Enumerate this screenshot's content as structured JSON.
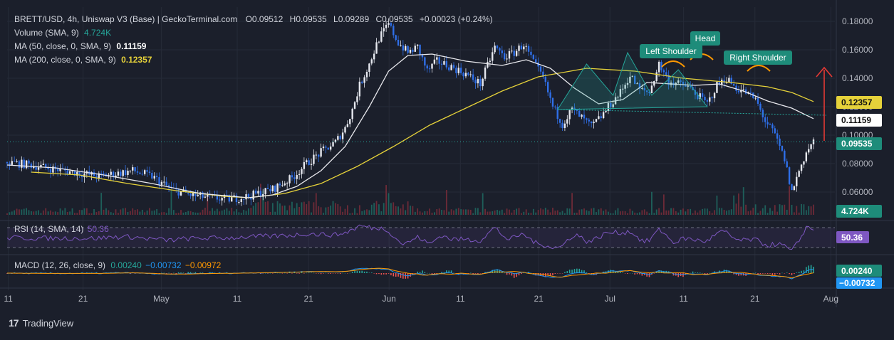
{
  "header": {
    "symbol_line": "BRETT/USD, 4h, Uniswap V3 (Base) | GeckoTerminal.com",
    "ohlc": [
      {
        "k": "O",
        "v": "0.09512"
      },
      {
        "k": "H",
        "v": "0.09535"
      },
      {
        "k": "L",
        "v": "0.09289"
      },
      {
        "k": "C",
        "v": "0.09535"
      }
    ],
    "change": "+0.00023 (+0.24%)",
    "volume_label": "Volume (SMA, 9)",
    "volume_value": "4.724K",
    "ma50_label": "MA (50, close, 0, SMA, 9)",
    "ma50_value": "0.11159",
    "ma200_label": "MA (200, close, 0, SMA, 9)",
    "ma200_value": "0.12357"
  },
  "rsi": {
    "label": "RSI (14, SMA, 14)",
    "value": "50.36",
    "badge": "50.36"
  },
  "macd": {
    "label": "MACD (12, 26, close, 9)",
    "v1": "0.00240",
    "v2": "−0.00732",
    "v3": "−0.00972",
    "badge1": "0.00240",
    "badge2": "−0.00732"
  },
  "annotations": {
    "left_shoulder": "Left Shoulder",
    "head": "Head",
    "right_shoulder": "Right Shoulder"
  },
  "price_badges": {
    "ma200": "0.12357",
    "ma50": "0.11159",
    "last": "0.09535",
    "volume": "4.724K"
  },
  "footer": {
    "logo": "17",
    "brand": "TradingView"
  },
  "colors": {
    "background": "#1b1f2b",
    "candle_blue": "#2f6fe8",
    "candle_white": "#e6e8ef",
    "ma50": "#e9e9ee",
    "ma200": "#e6d23a",
    "rsi": "#7e57c2",
    "macd": "#2196f3",
    "signal": "#ff9800",
    "pattern": "#26a69a",
    "arrow": "#e53935",
    "label_bg": "#1e8c7a"
  },
  "chart_data": {
    "type": "candlestick",
    "timeframe": "4h",
    "y_axis": {
      "min": 0.05,
      "max": 0.19,
      "ticks": [
        "0.18000",
        "0.16000",
        "0.14000",
        "0.12000",
        "0.10000",
        "0.08000",
        "0.06000"
      ]
    },
    "x_ticks": [
      "11",
      "21",
      "May",
      "11",
      "21",
      "Jun",
      "11",
      "21",
      "Jul",
      "11",
      "21",
      "Aug"
    ],
    "close_path": [
      [
        0,
        0.081
      ],
      [
        10,
        0.079
      ],
      [
        20,
        0.076
      ],
      [
        28,
        0.074
      ],
      [
        38,
        0.071
      ],
      [
        45,
        0.073
      ],
      [
        52,
        0.075
      ],
      [
        60,
        0.071
      ],
      [
        68,
        0.062
      ],
      [
        76,
        0.058
      ],
      [
        84,
        0.056
      ],
      [
        92,
        0.055
      ],
      [
        100,
        0.057
      ],
      [
        106,
        0.06
      ],
      [
        110,
        0.062
      ],
      [
        118,
        0.07
      ],
      [
        124,
        0.08
      ],
      [
        130,
        0.088
      ],
      [
        136,
        0.095
      ],
      [
        140,
        0.105
      ],
      [
        143,
        0.118
      ],
      [
        146,
        0.135
      ],
      [
        150,
        0.15
      ],
      [
        154,
        0.168
      ],
      [
        158,
        0.178
      ],
      [
        162,
        0.165
      ],
      [
        166,
        0.158
      ],
      [
        170,
        0.162
      ],
      [
        174,
        0.145
      ],
      [
        178,
        0.152
      ],
      [
        184,
        0.148
      ],
      [
        190,
        0.143
      ],
      [
        196,
        0.136
      ],
      [
        202,
        0.162
      ],
      [
        206,
        0.155
      ],
      [
        210,
        0.158
      ],
      [
        214,
        0.164
      ],
      [
        218,
        0.151
      ],
      [
        222,
        0.14
      ],
      [
        226,
        0.12
      ],
      [
        230,
        0.108
      ],
      [
        234,
        0.118
      ],
      [
        238,
        0.112
      ],
      [
        242,
        0.106
      ],
      [
        246,
        0.113
      ],
      [
        250,
        0.122
      ],
      [
        254,
        0.13
      ],
      [
        258,
        0.142
      ],
      [
        262,
        0.132
      ],
      [
        266,
        0.13
      ],
      [
        270,
        0.15
      ],
      [
        274,
        0.138
      ],
      [
        278,
        0.136
      ],
      [
        282,
        0.134
      ],
      [
        286,
        0.128
      ],
      [
        290,
        0.122
      ],
      [
        294,
        0.135
      ],
      [
        298,
        0.14
      ],
      [
        302,
        0.133
      ],
      [
        306,
        0.13
      ],
      [
        310,
        0.125
      ],
      [
        314,
        0.11
      ],
      [
        318,
        0.1
      ],
      [
        322,
        0.083
      ],
      [
        325,
        0.06
      ],
      [
        328,
        0.075
      ],
      [
        331,
        0.088
      ],
      [
        334,
        0.0953
      ]
    ],
    "ma50_path": [
      [
        0,
        0.079
      ],
      [
        20,
        0.077
      ],
      [
        40,
        0.072
      ],
      [
        60,
        0.066
      ],
      [
        80,
        0.059
      ],
      [
        100,
        0.056
      ],
      [
        110,
        0.058
      ],
      [
        120,
        0.064
      ],
      [
        130,
        0.075
      ],
      [
        140,
        0.092
      ],
      [
        150,
        0.12
      ],
      [
        158,
        0.145
      ],
      [
        166,
        0.156
      ],
      [
        176,
        0.157
      ],
      [
        190,
        0.152
      ],
      [
        205,
        0.149
      ],
      [
        215,
        0.153
      ],
      [
        225,
        0.147
      ],
      [
        235,
        0.133
      ],
      [
        245,
        0.122
      ],
      [
        255,
        0.125
      ],
      [
        265,
        0.137
      ],
      [
        275,
        0.136
      ],
      [
        285,
        0.135
      ],
      [
        295,
        0.136
      ],
      [
        305,
        0.131
      ],
      [
        315,
        0.124
      ],
      [
        325,
        0.119
      ],
      [
        334,
        0.1116
      ]
    ],
    "ma200_path": [
      [
        10,
        0.074
      ],
      [
        30,
        0.072
      ],
      [
        50,
        0.066
      ],
      [
        70,
        0.061
      ],
      [
        90,
        0.057
      ],
      [
        100,
        0.056
      ],
      [
        115,
        0.059
      ],
      [
        130,
        0.066
      ],
      [
        145,
        0.078
      ],
      [
        160,
        0.092
      ],
      [
        175,
        0.107
      ],
      [
        190,
        0.119
      ],
      [
        205,
        0.131
      ],
      [
        220,
        0.141
      ],
      [
        240,
        0.147
      ],
      [
        260,
        0.145
      ],
      [
        280,
        0.14
      ],
      [
        300,
        0.137
      ],
      [
        315,
        0.134
      ],
      [
        325,
        0.13
      ],
      [
        334,
        0.1236
      ]
    ],
    "rsi": {
      "range": [
        0,
        100
      ],
      "bands": [
        70,
        30
      ],
      "last": 50.36
    },
    "macd": {
      "macd_last": 0.0024,
      "signal_last": -0.00732,
      "hist_last": -0.00972
    }
  }
}
